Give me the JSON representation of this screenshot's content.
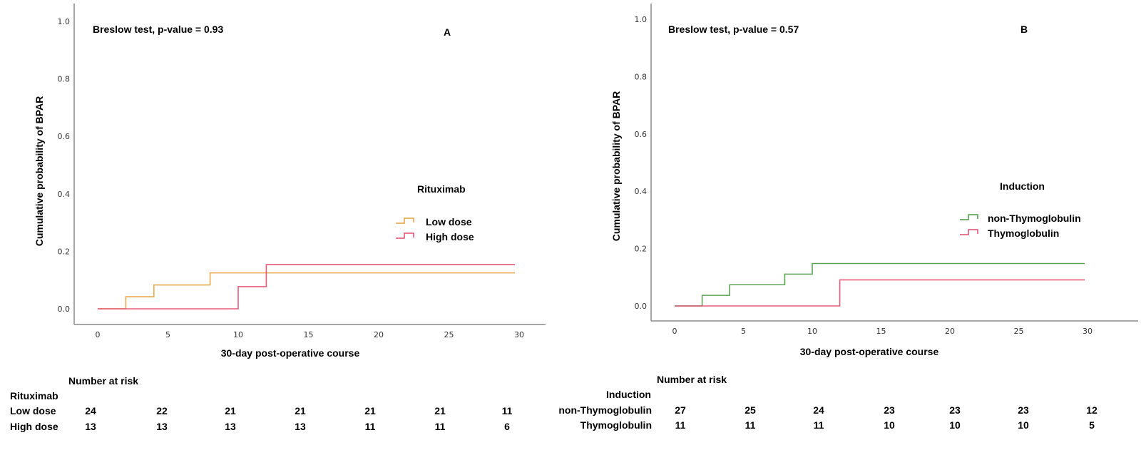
{
  "chart_data": [
    {
      "type": "line",
      "subtype": "kaplan-meier-cumulative-incidence",
      "panel_label": "A",
      "annotation": "Breslow test, p-value = 0.93",
      "xlabel": "30-day post-operative course",
      "ylabel": "Cumulative probability of BPAR",
      "xlim": [
        0,
        30
      ],
      "ylim": [
        0,
        1.0
      ],
      "xticks": [
        "0",
        "5",
        "10",
        "15",
        "20",
        "25",
        "30"
      ],
      "yticks": [
        "0.0",
        "0.2",
        "0.4",
        "0.6",
        "0.8",
        "1.0"
      ],
      "legend_title": "Rituximab",
      "legend_position": "center-right",
      "series": [
        {
          "name": "Low dose",
          "color": "#E9A03B",
          "x": [
            0,
            2,
            4,
            8,
            29.7
          ],
          "y": [
            0,
            0.042,
            0.083,
            0.125,
            0.125
          ]
        },
        {
          "name": "High dose",
          "color": "#E24A6E",
          "x": [
            0,
            10,
            12,
            29.7
          ],
          "y": [
            0,
            0.077,
            0.154,
            0.154
          ]
        }
      ],
      "risk_table": {
        "title": "Number at risk",
        "group_label": "Rituximab",
        "rows": [
          {
            "label": "Low dose",
            "values": [
              "24",
              "22",
              "21",
              "21",
              "21",
              "21",
              "11"
            ]
          },
          {
            "label": "High dose",
            "values": [
              "13",
              "13",
              "13",
              "13",
              "11",
              "11",
              "6"
            ]
          }
        ]
      }
    },
    {
      "type": "line",
      "subtype": "kaplan-meier-cumulative-incidence",
      "panel_label": "B",
      "annotation": "Breslow test, p-value = 0.57",
      "xlabel": "30-day post-operative course",
      "ylabel": "Cumulative probability of BPAR",
      "xlim": [
        0,
        30
      ],
      "ylim": [
        0,
        1.0
      ],
      "xticks": [
        "0",
        "5",
        "10",
        "15",
        "20",
        "25",
        "30"
      ],
      "yticks": [
        "0.0",
        "0.2",
        "0.4",
        "0.6",
        "0.8",
        "1.0"
      ],
      "legend_title": "Induction",
      "legend_position": "center-right",
      "series": [
        {
          "name": "non-Thymoglobulin",
          "color": "#4C9A46",
          "x": [
            0,
            2,
            4,
            8,
            10,
            29.8
          ],
          "y": [
            0,
            0.037,
            0.074,
            0.111,
            0.148,
            0.148
          ]
        },
        {
          "name": "Thymoglobulin",
          "color": "#E24A6E",
          "x": [
            0,
            12,
            29.8
          ],
          "y": [
            0,
            0.091,
            0.091
          ]
        }
      ],
      "risk_table": {
        "title": "Number at risk",
        "group_label": "Induction",
        "rows": [
          {
            "label": "non-Thymoglobulin",
            "values": [
              "27",
              "25",
              "24",
              "23",
              "23",
              "23",
              "12"
            ]
          },
          {
            "label": "Thymoglobulin",
            "values": [
              "11",
              "11",
              "11",
              "10",
              "10",
              "10",
              "5"
            ]
          }
        ]
      }
    }
  ]
}
